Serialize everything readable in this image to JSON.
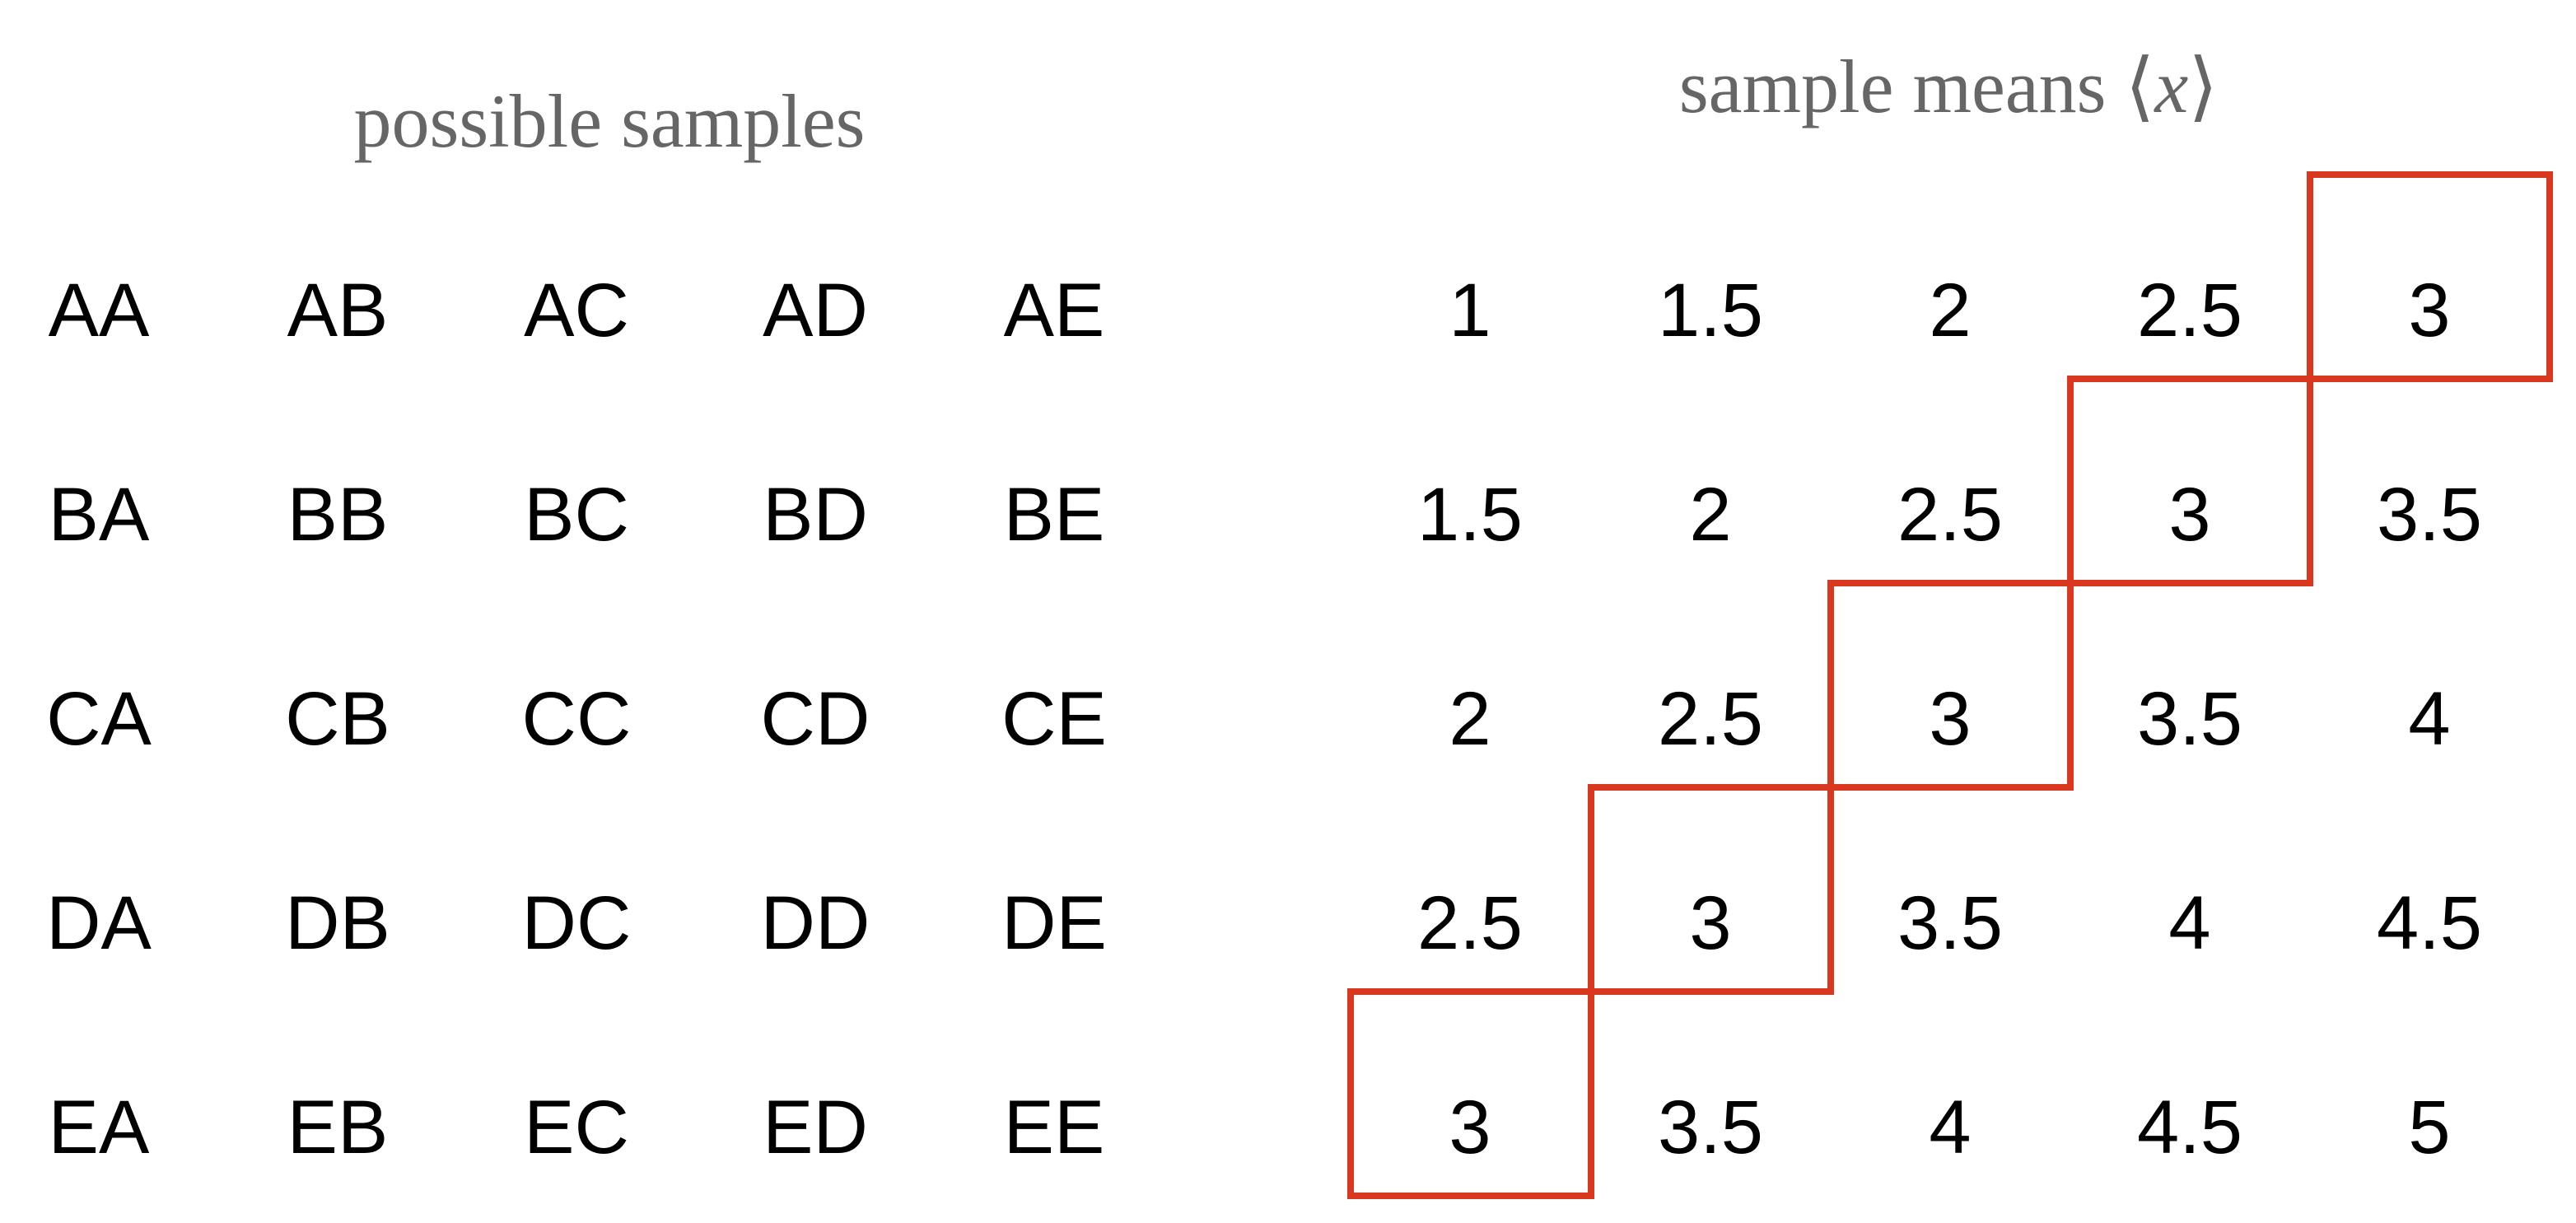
{
  "left_panel": {
    "title": "possible samples",
    "rows": [
      [
        "AA",
        "AB",
        "AC",
        "AD",
        "AE"
      ],
      [
        "BA",
        "BB",
        "BC",
        "BD",
        "BE"
      ],
      [
        "CA",
        "CB",
        "CC",
        "CD",
        "CE"
      ],
      [
        "DA",
        "DB",
        "DC",
        "DD",
        "DE"
      ],
      [
        "EA",
        "EB",
        "EC",
        "ED",
        "EE"
      ]
    ]
  },
  "right_panel": {
    "title_prefix": "sample means ",
    "title_open": "⟨",
    "title_var": "x",
    "title_close": "⟩",
    "rows": [
      [
        "1",
        "1.5",
        "2",
        "2.5",
        "3"
      ],
      [
        "1.5",
        "2",
        "2.5",
        "3",
        "3.5"
      ],
      [
        "2",
        "2.5",
        "3",
        "3.5",
        "4"
      ],
      [
        "2.5",
        "3",
        "3.5",
        "4",
        "4.5"
      ],
      [
        "3",
        "3.5",
        "4",
        "4.5",
        "5"
      ]
    ],
    "highlighted_cells": [
      [
        0,
        4
      ],
      [
        1,
        3
      ],
      [
        2,
        2
      ],
      [
        3,
        1
      ],
      [
        4,
        0
      ]
    ],
    "highlight_color": "#d9381e"
  }
}
